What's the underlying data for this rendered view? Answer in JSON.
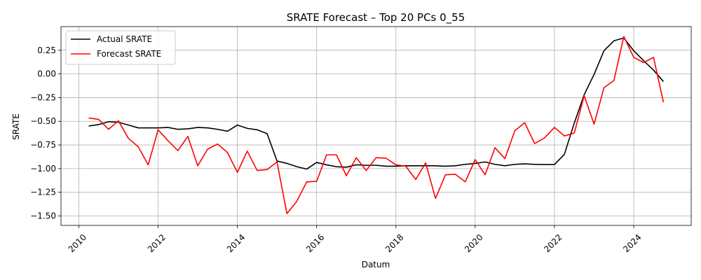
{
  "chart_data": {
    "type": "line",
    "title": "SRATE Forecast – Top 20 PCs 0_55",
    "xlabel": "Datum",
    "ylabel": "SRATE",
    "xlim": [
      2009.55,
      2025.45
    ],
    "ylim": [
      -1.6,
      0.5
    ],
    "x_ticks": [
      2010,
      2012,
      2014,
      2016,
      2018,
      2020,
      2022,
      2024
    ],
    "x_tick_labels": [
      "2010",
      "2012",
      "2014",
      "2016",
      "2018",
      "2020",
      "2022",
      "2024"
    ],
    "y_ticks": [
      0.25,
      0.0,
      -0.25,
      -0.5,
      -0.75,
      -1.0,
      -1.25,
      -1.5
    ],
    "y_tick_labels": [
      "0.25",
      "0.00",
      "−0.25",
      "−0.50",
      "−0.75",
      "−1.00",
      "−1.25",
      "−1.50"
    ],
    "grid": true,
    "legend_position": "upper-left",
    "x": [
      2010.25,
      2010.5,
      2010.75,
      2011.0,
      2011.25,
      2011.5,
      2011.75,
      2012.0,
      2012.25,
      2012.5,
      2012.75,
      2013.0,
      2013.25,
      2013.5,
      2013.75,
      2014.0,
      2014.25,
      2014.5,
      2014.75,
      2015.0,
      2015.25,
      2015.5,
      2015.75,
      2016.0,
      2016.25,
      2016.5,
      2016.75,
      2017.0,
      2017.25,
      2017.5,
      2017.75,
      2018.0,
      2018.25,
      2018.5,
      2018.75,
      2019.0,
      2019.25,
      2019.5,
      2019.75,
      2020.0,
      2020.25,
      2020.5,
      2020.75,
      2021.0,
      2021.25,
      2021.5,
      2021.75,
      2022.0,
      2022.25,
      2022.5,
      2022.75,
      2023.0,
      2023.25,
      2023.5,
      2023.75,
      2024.0,
      2024.25,
      2024.5,
      2024.75
    ],
    "series": [
      {
        "name": "Actual SRATE",
        "color": "#000000",
        "values": [
          -0.55,
          -0.535,
          -0.505,
          -0.51,
          -0.54,
          -0.57,
          -0.57,
          -0.57,
          -0.565,
          -0.585,
          -0.58,
          -0.565,
          -0.57,
          -0.585,
          -0.605,
          -0.54,
          -0.575,
          -0.59,
          -0.63,
          -0.92,
          -0.945,
          -0.98,
          -1.005,
          -0.935,
          -0.96,
          -0.98,
          -0.985,
          -0.96,
          -0.965,
          -0.965,
          -0.975,
          -0.975,
          -0.97,
          -0.97,
          -0.97,
          -0.97,
          -0.975,
          -0.97,
          -0.955,
          -0.945,
          -0.93,
          -0.955,
          -0.97,
          -0.955,
          -0.95,
          -0.955,
          -0.957,
          -0.957,
          -0.85,
          -0.52,
          -0.22,
          -0.005,
          0.245,
          0.35,
          0.38,
          0.245,
          0.14,
          0.04,
          -0.08
        ]
      },
      {
        "name": "Forecast SRATE",
        "color": "#ff0000",
        "values": [
          -0.465,
          -0.48,
          -0.585,
          -0.495,
          -0.68,
          -0.77,
          -0.96,
          -0.59,
          -0.705,
          -0.81,
          -0.66,
          -0.97,
          -0.795,
          -0.74,
          -0.83,
          -1.04,
          -0.815,
          -1.02,
          -1.01,
          -0.93,
          -1.475,
          -1.345,
          -1.14,
          -1.135,
          -0.855,
          -0.855,
          -1.075,
          -0.885,
          -1.02,
          -0.885,
          -0.89,
          -0.96,
          -0.975,
          -1.115,
          -0.94,
          -1.315,
          -1.065,
          -1.06,
          -1.14,
          -0.905,
          -1.065,
          -0.78,
          -0.895,
          -0.6,
          -0.515,
          -0.735,
          -0.675,
          -0.565,
          -0.655,
          -0.625,
          -0.23,
          -0.53,
          -0.145,
          -0.07,
          0.395,
          0.175,
          0.12,
          0.175,
          -0.3
        ]
      }
    ]
  }
}
